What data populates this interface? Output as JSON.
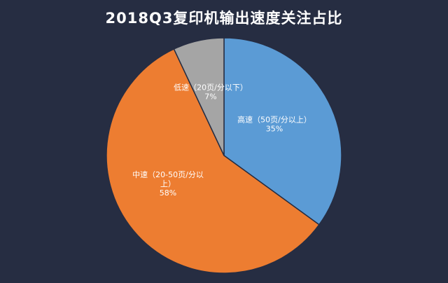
{
  "chart_data": {
    "type": "pie",
    "title": "2018Q3复印机输出速度关注占比",
    "slices": [
      {
        "label": "高速（50页/分以上）",
        "label_lines": [
          "高速（50页/分以上）"
        ],
        "value": 35,
        "value_label": "35%",
        "color": "#5b9bd5"
      },
      {
        "label": "中速（20-50页/分以上）",
        "label_lines": [
          "中速（20-50页/分以",
          "上）"
        ],
        "value": 58,
        "value_label": "58%",
        "color": "#ed7d31"
      },
      {
        "label": "低速（20页/分以下）",
        "label_lines": [
          "低速（20页/分以下）"
        ],
        "value": 7,
        "value_label": "7%",
        "color": "#a5a5a5"
      }
    ],
    "start_angle": "12 o'clock",
    "direction": "clockwise",
    "legend": "none",
    "background": "#262d42"
  }
}
